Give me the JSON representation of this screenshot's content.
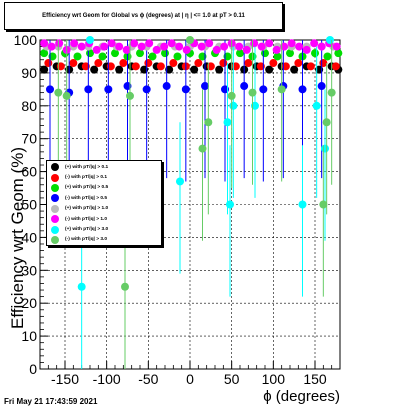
{
  "chart_data": {
    "type": "scatter",
    "title": "Efficiency wrt Geom for Global vs ϕ (degrees) at | η | <= 1.0 at pT > 0.11",
    "xlabel": "ϕ (degrees)",
    "ylabel": "Efficiency wrt Geom (%)",
    "xlim": [
      -180,
      180
    ],
    "ylim": [
      0,
      100
    ],
    "x_ticks": [
      -150,
      -100,
      -50,
      0,
      50,
      100,
      150
    ],
    "y_ticks": [
      0,
      10,
      20,
      30,
      40,
      50,
      60,
      70,
      80,
      90,
      100
    ],
    "grid": true,
    "legend_position": "left-middle",
    "timestamp": "Fri May 21 17:43:59 2021",
    "series": [
      {
        "name": "(+) with pT/|q| > 0.1",
        "color": "#000000",
        "points": [
          [
            -175,
            91
          ],
          [
            -160,
            92
          ],
          [
            -145,
            91
          ],
          [
            -130,
            92
          ],
          [
            -115,
            91
          ],
          [
            -100,
            92
          ],
          [
            -85,
            91
          ],
          [
            -70,
            92
          ],
          [
            -55,
            91
          ],
          [
            -40,
            92
          ],
          [
            -25,
            91
          ],
          [
            -10,
            92
          ],
          [
            5,
            91
          ],
          [
            20,
            92
          ],
          [
            35,
            91
          ],
          [
            50,
            92
          ],
          [
            65,
            91
          ],
          [
            80,
            92
          ],
          [
            95,
            91
          ],
          [
            110,
            92
          ],
          [
            125,
            91
          ],
          [
            140,
            92
          ],
          [
            155,
            91
          ],
          [
            170,
            92
          ],
          [
            178,
            91
          ]
        ]
      },
      {
        "name": "(-) with pT/|q| > 0.1",
        "color": "#ff0000",
        "points": [
          [
            -170,
            93
          ],
          [
            -155,
            92
          ],
          [
            -140,
            93
          ],
          [
            -125,
            92
          ],
          [
            -110,
            93
          ],
          [
            -95,
            92
          ],
          [
            -80,
            93
          ],
          [
            -65,
            92
          ],
          [
            -50,
            93
          ],
          [
            -35,
            92
          ],
          [
            -20,
            93
          ],
          [
            -5,
            92
          ],
          [
            10,
            93
          ],
          [
            25,
            92
          ],
          [
            40,
            93
          ],
          [
            55,
            92
          ],
          [
            70,
            93
          ],
          [
            85,
            92
          ],
          [
            100,
            93
          ],
          [
            115,
            92
          ],
          [
            130,
            93
          ],
          [
            145,
            92
          ],
          [
            160,
            93
          ],
          [
            175,
            92
          ]
        ]
      },
      {
        "name": "(+) with pT/|q| > 0.5",
        "color": "#00dd00",
        "points": [
          [
            -175,
            96
          ],
          [
            -165,
            95
          ],
          [
            -150,
            96
          ],
          [
            -135,
            95
          ],
          [
            -120,
            96
          ],
          [
            -105,
            95
          ],
          [
            -90,
            96
          ],
          [
            -75,
            95
          ],
          [
            -60,
            96
          ],
          [
            -45,
            95
          ],
          [
            -30,
            96
          ],
          [
            -15,
            95
          ],
          [
            0,
            96
          ],
          [
            15,
            95
          ],
          [
            30,
            96
          ],
          [
            45,
            95
          ],
          [
            60,
            96
          ],
          [
            75,
            95
          ],
          [
            90,
            96
          ],
          [
            105,
            95
          ],
          [
            120,
            96
          ],
          [
            135,
            95
          ],
          [
            150,
            96
          ],
          [
            165,
            95
          ],
          [
            178,
            96
          ]
        ]
      },
      {
        "name": "(-) with pT/|q| > 0.5",
        "color": "#0000ff",
        "points": [
          [
            -168,
            85
          ],
          [
            -145,
            84
          ],
          [
            -122,
            85
          ],
          [
            -98,
            85
          ],
          [
            -75,
            86
          ],
          [
            -52,
            85
          ],
          [
            -28,
            86
          ],
          [
            -5,
            85
          ],
          [
            18,
            86
          ],
          [
            42,
            85
          ],
          [
            65,
            86
          ],
          [
            88,
            85
          ],
          [
            112,
            86
          ],
          [
            135,
            85
          ],
          [
            158,
            86
          ]
        ]
      },
      {
        "name": "(+) with pT/|q| > 1.0",
        "color": "#bbbbbb",
        "points": [
          [
            -172,
            98
          ],
          [
            -158,
            98
          ],
          [
            -140,
            98
          ],
          [
            -122,
            98
          ],
          [
            -105,
            98
          ],
          [
            -88,
            98
          ],
          [
            -70,
            98
          ],
          [
            -52,
            98
          ],
          [
            -35,
            98
          ],
          [
            -18,
            98
          ],
          [
            0,
            98
          ],
          [
            18,
            98
          ],
          [
            35,
            98
          ],
          [
            52,
            98
          ],
          [
            70,
            98
          ],
          [
            88,
            98
          ],
          [
            105,
            98
          ],
          [
            122,
            98
          ],
          [
            140,
            98
          ],
          [
            158,
            98
          ],
          [
            172,
            98
          ]
        ]
      },
      {
        "name": "(-) with pT/|q| > 1.0",
        "color": "#ff00ff",
        "points": [
          [
            -175,
            99
          ],
          [
            -166,
            98
          ],
          [
            -157,
            99
          ],
          [
            -148,
            97
          ],
          [
            -139,
            99
          ],
          [
            -130,
            98
          ],
          [
            -121,
            99
          ],
          [
            -112,
            97
          ],
          [
            -103,
            98
          ],
          [
            -94,
            99
          ],
          [
            -85,
            98
          ],
          [
            -76,
            97
          ],
          [
            -67,
            99
          ],
          [
            -58,
            98
          ],
          [
            -49,
            99
          ],
          [
            -40,
            97
          ],
          [
            -31,
            98
          ],
          [
            -22,
            99
          ],
          [
            -13,
            98
          ],
          [
            -4,
            97
          ],
          [
            5,
            99
          ],
          [
            14,
            98
          ],
          [
            23,
            99
          ],
          [
            32,
            97
          ],
          [
            41,
            98
          ],
          [
            50,
            99
          ],
          [
            59,
            98
          ],
          [
            68,
            97
          ],
          [
            77,
            99
          ],
          [
            86,
            98
          ],
          [
            95,
            99
          ],
          [
            104,
            97
          ],
          [
            113,
            98
          ],
          [
            122,
            99
          ],
          [
            131,
            98
          ],
          [
            140,
            97
          ],
          [
            149,
            99
          ],
          [
            158,
            98
          ],
          [
            167,
            99
          ],
          [
            176,
            98
          ]
        ]
      },
      {
        "name": "(+) with pT/|q| > 3.0",
        "color": "#00ffff",
        "points": [
          [
            -130,
            25
          ],
          [
            -120,
            100
          ],
          [
            -12,
            57
          ],
          [
            45,
            75
          ],
          [
            48,
            50
          ],
          [
            52,
            80
          ],
          [
            78,
            80
          ],
          [
            135,
            50
          ],
          [
            152,
            80
          ],
          [
            162,
            67
          ],
          [
            168,
            100
          ]
        ]
      },
      {
        "name": "(-) with pT/|q| > 3.0",
        "color": "#66cc66",
        "points": [
          [
            -158,
            84
          ],
          [
            -148,
            83
          ],
          [
            -78,
            25
          ],
          [
            -72,
            83
          ],
          [
            0,
            100
          ],
          [
            15,
            67
          ],
          [
            22,
            75
          ],
          [
            50,
            83
          ],
          [
            75,
            84
          ],
          [
            110,
            85
          ],
          [
            160,
            50
          ],
          [
            164,
            75
          ],
          [
            170,
            84
          ]
        ]
      }
    ]
  }
}
